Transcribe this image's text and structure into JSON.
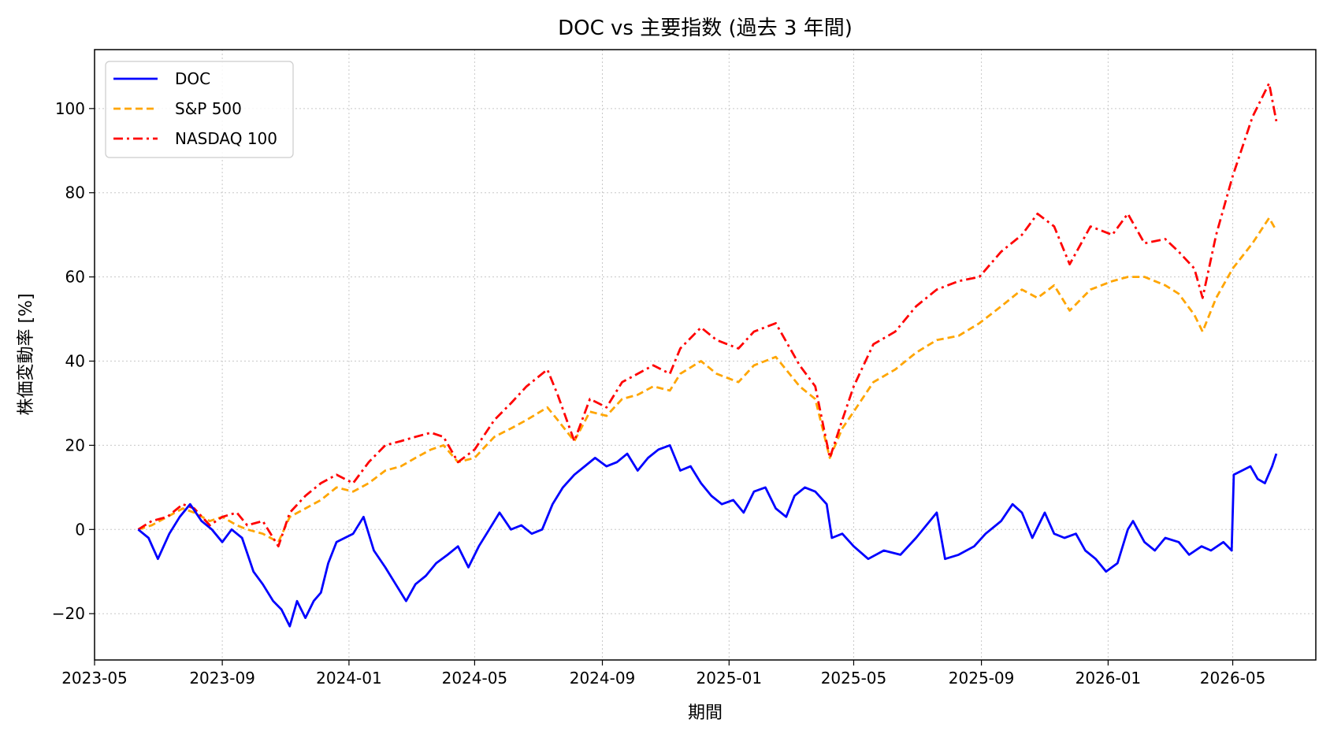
{
  "chart_data": {
    "type": "line",
    "title": "DOC vs 主要指数 (過去 3 年間)",
    "xlabel": "期間",
    "ylabel": "株価変動率 [%]",
    "xlim": [
      "2023-05-01",
      "2026-07-20"
    ],
    "ylim": [
      -31,
      114
    ],
    "grid": true,
    "legend_position": "top-left",
    "x_ticks": [
      "2023-05",
      "2023-09",
      "2024-01",
      "2024-05",
      "2024-09",
      "2025-01",
      "2025-05",
      "2025-09",
      "2026-01",
      "2026-05"
    ],
    "y_ticks": [
      -20,
      0,
      20,
      40,
      60,
      80,
      100
    ],
    "series": [
      {
        "name": "DOC",
        "color": "#0000ff",
        "style": "solid",
        "points": [
          [
            "2023-06-12",
            0
          ],
          [
            "2023-06-22",
            -2
          ],
          [
            "2023-07-01",
            -7
          ],
          [
            "2023-07-12",
            -1
          ],
          [
            "2023-07-22",
            3
          ],
          [
            "2023-08-01",
            6
          ],
          [
            "2023-08-12",
            2
          ],
          [
            "2023-08-22",
            0
          ],
          [
            "2023-09-01",
            -3
          ],
          [
            "2023-09-10",
            0
          ],
          [
            "2023-09-20",
            -2
          ],
          [
            "2023-10-01",
            -10
          ],
          [
            "2023-10-10",
            -13
          ],
          [
            "2023-10-20",
            -17
          ],
          [
            "2023-10-28",
            -19
          ],
          [
            "2023-11-05",
            -23
          ],
          [
            "2023-11-12",
            -17
          ],
          [
            "2023-11-20",
            -21
          ],
          [
            "2023-11-28",
            -17
          ],
          [
            "2023-12-05",
            -15
          ],
          [
            "2023-12-12",
            -8
          ],
          [
            "2023-12-20",
            -3
          ],
          [
            "2023-12-28",
            -2
          ],
          [
            "2024-01-05",
            -1
          ],
          [
            "2024-01-15",
            3
          ],
          [
            "2024-01-25",
            -5
          ],
          [
            "2024-02-05",
            -9
          ],
          [
            "2024-02-15",
            -13
          ],
          [
            "2024-02-25",
            -17
          ],
          [
            "2024-03-05",
            -13
          ],
          [
            "2024-03-15",
            -11
          ],
          [
            "2024-03-25",
            -8
          ],
          [
            "2024-04-05",
            -6
          ],
          [
            "2024-04-15",
            -4
          ],
          [
            "2024-04-25",
            -9
          ],
          [
            "2024-05-05",
            -4
          ],
          [
            "2024-05-15",
            0
          ],
          [
            "2024-05-25",
            4
          ],
          [
            "2024-06-05",
            0
          ],
          [
            "2024-06-15",
            1
          ],
          [
            "2024-06-25",
            -1
          ],
          [
            "2024-07-05",
            0
          ],
          [
            "2024-07-15",
            6
          ],
          [
            "2024-07-25",
            10
          ],
          [
            "2024-08-05",
            13
          ],
          [
            "2024-08-15",
            15
          ],
          [
            "2024-08-25",
            17
          ],
          [
            "2024-09-05",
            15
          ],
          [
            "2024-09-15",
            16
          ],
          [
            "2024-09-25",
            18
          ],
          [
            "2024-10-05",
            14
          ],
          [
            "2024-10-15",
            17
          ],
          [
            "2024-10-25",
            19
          ],
          [
            "2024-11-05",
            20
          ],
          [
            "2024-11-15",
            14
          ],
          [
            "2024-11-25",
            15
          ],
          [
            "2024-12-05",
            11
          ],
          [
            "2024-12-15",
            8
          ],
          [
            "2024-12-25",
            6
          ],
          [
            "2025-01-05",
            7
          ],
          [
            "2025-01-15",
            4
          ],
          [
            "2025-01-25",
            9
          ],
          [
            "2025-02-05",
            10
          ],
          [
            "2025-02-15",
            5
          ],
          [
            "2025-02-25",
            3
          ],
          [
            "2025-03-05",
            8
          ],
          [
            "2025-03-15",
            10
          ],
          [
            "2025-03-25",
            9
          ],
          [
            "2025-04-05",
            6
          ],
          [
            "2025-04-10",
            -2
          ],
          [
            "2025-04-20",
            -1
          ],
          [
            "2025-05-01",
            -4
          ],
          [
            "2025-05-15",
            -7
          ],
          [
            "2025-05-30",
            -5
          ],
          [
            "2025-06-15",
            -6
          ],
          [
            "2025-06-30",
            -2
          ],
          [
            "2025-07-10",
            1
          ],
          [
            "2025-07-20",
            4
          ],
          [
            "2025-07-28",
            -7
          ],
          [
            "2025-08-10",
            -6
          ],
          [
            "2025-08-25",
            -4
          ],
          [
            "2025-09-05",
            -1
          ],
          [
            "2025-09-20",
            2
          ],
          [
            "2025-10-01",
            6
          ],
          [
            "2025-10-10",
            4
          ],
          [
            "2025-10-20",
            -2
          ],
          [
            "2025-11-01",
            4
          ],
          [
            "2025-11-10",
            -1
          ],
          [
            "2025-11-20",
            -2
          ],
          [
            "2025-12-01",
            -1
          ],
          [
            "2025-12-10",
            -5
          ],
          [
            "2025-12-20",
            -7
          ],
          [
            "2025-12-30",
            -10
          ],
          [
            "2026-01-10",
            -8
          ],
          [
            "2026-01-20",
            0
          ],
          [
            "2026-01-25",
            2
          ],
          [
            "2026-02-05",
            -3
          ],
          [
            "2026-02-15",
            -5
          ],
          [
            "2026-02-25",
            -2
          ],
          [
            "2026-03-10",
            -3
          ],
          [
            "2026-03-20",
            -6
          ],
          [
            "2026-04-01",
            -4
          ],
          [
            "2026-04-10",
            -5
          ],
          [
            "2026-04-22",
            -3
          ],
          [
            "2026-04-30",
            -5
          ],
          [
            "2026-05-02",
            13
          ],
          [
            "2026-05-10",
            14
          ],
          [
            "2026-05-18",
            15
          ],
          [
            "2026-05-25",
            12
          ],
          [
            "2026-06-01",
            11
          ],
          [
            "2026-06-08",
            15
          ],
          [
            "2026-06-12",
            18
          ]
        ]
      },
      {
        "name": "S&P 500",
        "color": "#ffa500",
        "style": "dashed",
        "points": [
          [
            "2023-06-12",
            0
          ],
          [
            "2023-06-25",
            1
          ],
          [
            "2023-07-10",
            3
          ],
          [
            "2023-07-25",
            5
          ],
          [
            "2023-08-05",
            4
          ],
          [
            "2023-08-20",
            2
          ],
          [
            "2023-09-01",
            3
          ],
          [
            "2023-09-15",
            1
          ],
          [
            "2023-09-25",
            0
          ],
          [
            "2023-10-10",
            -1
          ],
          [
            "2023-10-25",
            -3
          ],
          [
            "2023-11-05",
            3
          ],
          [
            "2023-11-20",
            5
          ],
          [
            "2023-12-05",
            7
          ],
          [
            "2023-12-20",
            10
          ],
          [
            "2024-01-05",
            9
          ],
          [
            "2024-01-20",
            11
          ],
          [
            "2024-02-05",
            14
          ],
          [
            "2024-02-20",
            15
          ],
          [
            "2024-03-05",
            17
          ],
          [
            "2024-03-20",
            19
          ],
          [
            "2024-04-01",
            20
          ],
          [
            "2024-04-15",
            16
          ],
          [
            "2024-05-01",
            17
          ],
          [
            "2024-05-20",
            22
          ],
          [
            "2024-06-05",
            24
          ],
          [
            "2024-06-20",
            26
          ],
          [
            "2024-07-10",
            29
          ],
          [
            "2024-07-20",
            26
          ],
          [
            "2024-08-05",
            21
          ],
          [
            "2024-08-20",
            28
          ],
          [
            "2024-09-05",
            27
          ],
          [
            "2024-09-20",
            31
          ],
          [
            "2024-10-05",
            32
          ],
          [
            "2024-10-20",
            34
          ],
          [
            "2024-11-05",
            33
          ],
          [
            "2024-11-15",
            37
          ],
          [
            "2024-12-05",
            40
          ],
          [
            "2024-12-20",
            37
          ],
          [
            "2025-01-10",
            35
          ],
          [
            "2025-01-25",
            39
          ],
          [
            "2025-02-15",
            41
          ],
          [
            "2025-03-10",
            34
          ],
          [
            "2025-03-25",
            31
          ],
          [
            "2025-04-08",
            17
          ],
          [
            "2025-04-20",
            24
          ],
          [
            "2025-05-01",
            28
          ],
          [
            "2025-05-20",
            35
          ],
          [
            "2025-06-10",
            38
          ],
          [
            "2025-06-30",
            42
          ],
          [
            "2025-07-20",
            45
          ],
          [
            "2025-08-10",
            46
          ],
          [
            "2025-08-30",
            49
          ],
          [
            "2025-09-20",
            53
          ],
          [
            "2025-10-10",
            57
          ],
          [
            "2025-10-25",
            55
          ],
          [
            "2025-11-10",
            58
          ],
          [
            "2025-11-25",
            52
          ],
          [
            "2025-12-15",
            57
          ],
          [
            "2026-01-05",
            59
          ],
          [
            "2026-01-20",
            60
          ],
          [
            "2026-02-05",
            60
          ],
          [
            "2026-02-25",
            58
          ],
          [
            "2026-03-10",
            56
          ],
          [
            "2026-03-25",
            51
          ],
          [
            "2026-04-02",
            47
          ],
          [
            "2026-04-15",
            55
          ],
          [
            "2026-05-01",
            62
          ],
          [
            "2026-05-20",
            68
          ],
          [
            "2026-06-05",
            74
          ],
          [
            "2026-06-12",
            71
          ]
        ]
      },
      {
        "name": "NASDAQ 100",
        "color": "#ff0000",
        "style": "dashdot",
        "points": [
          [
            "2023-06-12",
            0
          ],
          [
            "2023-06-25",
            2
          ],
          [
            "2023-07-10",
            3
          ],
          [
            "2023-07-25",
            6
          ],
          [
            "2023-08-05",
            5
          ],
          [
            "2023-08-20",
            1
          ],
          [
            "2023-09-01",
            3
          ],
          [
            "2023-09-15",
            4
          ],
          [
            "2023-09-25",
            1
          ],
          [
            "2023-10-10",
            2
          ],
          [
            "2023-10-25",
            -4
          ],
          [
            "2023-11-05",
            4
          ],
          [
            "2023-11-20",
            8
          ],
          [
            "2023-12-05",
            11
          ],
          [
            "2023-12-20",
            13
          ],
          [
            "2024-01-05",
            11
          ],
          [
            "2024-01-20",
            16
          ],
          [
            "2024-02-05",
            20
          ],
          [
            "2024-02-20",
            21
          ],
          [
            "2024-03-05",
            22
          ],
          [
            "2024-03-20",
            23
          ],
          [
            "2024-04-01",
            22
          ],
          [
            "2024-04-15",
            16
          ],
          [
            "2024-05-01",
            19
          ],
          [
            "2024-05-20",
            26
          ],
          [
            "2024-06-05",
            30
          ],
          [
            "2024-06-20",
            34
          ],
          [
            "2024-07-10",
            38
          ],
          [
            "2024-07-20",
            32
          ],
          [
            "2024-08-05",
            21
          ],
          [
            "2024-08-20",
            31
          ],
          [
            "2024-09-05",
            29
          ],
          [
            "2024-09-20",
            35
          ],
          [
            "2024-10-05",
            37
          ],
          [
            "2024-10-20",
            39
          ],
          [
            "2024-11-05",
            37
          ],
          [
            "2024-11-15",
            43
          ],
          [
            "2024-12-05",
            48
          ],
          [
            "2024-12-20",
            45
          ],
          [
            "2025-01-10",
            43
          ],
          [
            "2025-01-25",
            47
          ],
          [
            "2025-02-15",
            49
          ],
          [
            "2025-03-10",
            39
          ],
          [
            "2025-03-25",
            34
          ],
          [
            "2025-04-08",
            17
          ],
          [
            "2025-04-20",
            26
          ],
          [
            "2025-05-01",
            34
          ],
          [
            "2025-05-20",
            44
          ],
          [
            "2025-06-10",
            47
          ],
          [
            "2025-06-30",
            53
          ],
          [
            "2025-07-20",
            57
          ],
          [
            "2025-08-10",
            59
          ],
          [
            "2025-08-30",
            60
          ],
          [
            "2025-09-20",
            66
          ],
          [
            "2025-10-10",
            70
          ],
          [
            "2025-10-25",
            75
          ],
          [
            "2025-11-10",
            72
          ],
          [
            "2025-11-25",
            63
          ],
          [
            "2025-12-15",
            72
          ],
          [
            "2026-01-05",
            70
          ],
          [
            "2026-01-20",
            75
          ],
          [
            "2026-02-05",
            68
          ],
          [
            "2026-02-25",
            69
          ],
          [
            "2026-03-10",
            66
          ],
          [
            "2026-03-25",
            62
          ],
          [
            "2026-04-02",
            55
          ],
          [
            "2026-04-15",
            70
          ],
          [
            "2026-05-01",
            84
          ],
          [
            "2026-05-20",
            98
          ],
          [
            "2026-06-05",
            106
          ],
          [
            "2026-06-12",
            97
          ]
        ]
      }
    ]
  }
}
